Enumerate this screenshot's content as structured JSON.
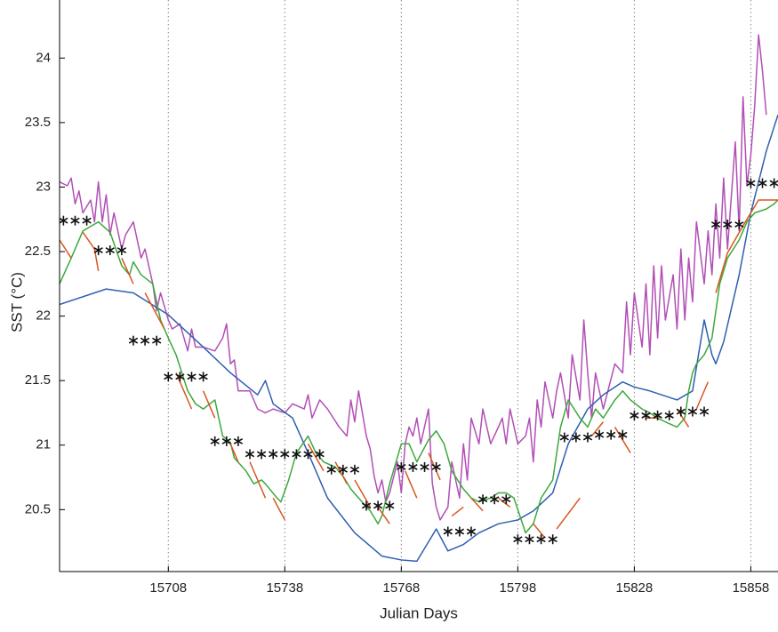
{
  "chart_data": {
    "type": "line",
    "xlabel": "Julian Days",
    "ylabel": "SST  (°C)",
    "xlim": [
      15680,
      15865
    ],
    "ylim": [
      20.02,
      24.45
    ],
    "xticks": [
      15708,
      15738,
      15768,
      15798,
      15828,
      15858
    ],
    "yticks": [
      20.5,
      21,
      21.5,
      22,
      22.5,
      23,
      23.5,
      24
    ],
    "grid": "x",
    "series": [
      {
        "color": "#b24fb6",
        "x": [
          15680,
          15682,
          15683,
          15684,
          15685,
          15686,
          15688,
          15689,
          15690,
          15691,
          15692,
          15693,
          15694,
          15696,
          15697,
          15699,
          15701,
          15702,
          15704,
          15705,
          15706,
          15708,
          15709,
          15711,
          15713,
          15714,
          15715,
          15717,
          15720,
          15722,
          15723,
          15724,
          15725,
          15726,
          15729,
          15731,
          15733,
          15735,
          15738,
          15740,
          15743,
          15744,
          15745,
          15747,
          15749,
          15752,
          15754,
          15755,
          15756,
          15757,
          15759,
          15760,
          15761,
          15762,
          15763,
          15764,
          15765,
          15767,
          15768,
          15769,
          15770,
          15771,
          15772,
          15773,
          15775,
          15776,
          15777,
          15778,
          15780,
          15781,
          15783,
          15784,
          15785,
          15786,
          15788,
          15789,
          15791,
          15793,
          15794,
          15795,
          15796,
          15798,
          15800,
          15801,
          15802,
          15803,
          15804,
          15805,
          15807,
          15808,
          15809,
          15811,
          15812,
          15814,
          15815,
          15816,
          15817,
          15818,
          15820,
          15823,
          15825,
          15826,
          15827,
          15828,
          15830,
          15831,
          15832,
          15833,
          15834,
          15835,
          15836,
          15838,
          15839,
          15840,
          15841,
          15842,
          15843,
          15844,
          15846,
          15847,
          15848,
          15849,
          15850,
          15851,
          15852,
          15854,
          15855,
          15856,
          15857,
          15858,
          15859,
          15860,
          15861,
          15862
        ],
        "values": [
          23.04,
          23.01,
          23.07,
          22.87,
          22.97,
          22.8,
          22.9,
          22.73,
          23.04,
          22.73,
          22.94,
          22.63,
          22.8,
          22.52,
          22.63,
          22.73,
          22.45,
          22.52,
          22.25,
          22.04,
          22.18,
          21.97,
          21.9,
          21.94,
          21.73,
          21.9,
          21.76,
          21.76,
          21.73,
          21.83,
          21.94,
          21.63,
          21.66,
          21.42,
          21.42,
          21.28,
          21.25,
          21.28,
          21.25,
          21.32,
          21.28,
          21.39,
          21.21,
          21.35,
          21.28,
          21.14,
          21.07,
          21.35,
          21.18,
          21.42,
          21.07,
          20.97,
          20.76,
          20.63,
          20.73,
          20.56,
          20.63,
          20.87,
          20.63,
          21.01,
          21.14,
          21.07,
          21.21,
          21.01,
          21.28,
          20.7,
          20.52,
          20.42,
          20.52,
          20.87,
          20.59,
          21.01,
          20.73,
          21.21,
          21.01,
          21.28,
          21.01,
          21.14,
          21.21,
          21.01,
          21.28,
          21.01,
          21.07,
          21.21,
          20.87,
          21.35,
          21.14,
          21.49,
          21.21,
          21.42,
          21.56,
          21.21,
          21.7,
          21.35,
          21.97,
          21.56,
          21.21,
          21.56,
          21.28,
          21.63,
          21.56,
          22.11,
          21.7,
          22.18,
          21.76,
          22.25,
          21.7,
          22.39,
          21.83,
          22.39,
          21.97,
          22.32,
          21.9,
          22.52,
          21.97,
          22.45,
          22.11,
          22.73,
          22.25,
          22.66,
          22.32,
          22.87,
          22.45,
          23.07,
          22.52,
          23.35,
          22.66,
          23.7,
          23.01,
          23.25,
          23.63,
          24.18,
          23.9,
          23.56
        ]
      },
      {
        "color": "#2f5faf",
        "x": [
          15680,
          15692,
          15699,
          15708,
          15717,
          15724,
          15731,
          15733,
          15735,
          15740,
          15744,
          15749,
          15756,
          15763,
          15768,
          15772,
          15775,
          15777,
          15780,
          15784,
          15788,
          15793,
          15798,
          15802,
          15807,
          15811,
          15816,
          15820,
          15825,
          15828,
          15832,
          15839,
          15843,
          15846,
          15848,
          15849,
          15851,
          15855,
          15858,
          15862,
          15865
        ],
        "values": [
          22.09,
          22.21,
          22.18,
          22.01,
          21.76,
          21.56,
          21.39,
          21.5,
          21.32,
          21.21,
          20.94,
          20.59,
          20.32,
          20.14,
          20.11,
          20.1,
          20.25,
          20.35,
          20.18,
          20.23,
          20.32,
          20.39,
          20.42,
          20.49,
          20.63,
          21.01,
          21.28,
          21.39,
          21.49,
          21.45,
          21.42,
          21.35,
          21.42,
          21.97,
          21.7,
          21.63,
          21.8,
          22.32,
          22.8,
          23.28,
          23.56
        ]
      },
      {
        "color": "#3da83d",
        "x": [
          15680,
          15683,
          15686,
          15690,
          15693,
          15696,
          15698,
          15699,
          15701,
          15704,
          15706,
          15708,
          15710,
          15713,
          15715,
          15717,
          15720,
          15722,
          15724,
          15725,
          15728,
          15730,
          15732,
          15733,
          15736,
          15737,
          15739,
          15741,
          15744,
          15746,
          15748,
          15751,
          15753,
          15755,
          15757,
          15760,
          15762,
          15763,
          15765,
          15768,
          15770,
          15772,
          15775,
          15777,
          15779,
          15781,
          15784,
          15786,
          15788,
          15791,
          15793,
          15795,
          15797,
          15800,
          15802,
          15804,
          15807,
          15809,
          15811,
          15814,
          15816,
          15818,
          15820,
          15823,
          15825,
          15827,
          15830,
          15832,
          15834,
          15836,
          15839,
          15841,
          15842,
          15843,
          15844,
          15846,
          15848,
          15850,
          15852,
          15855,
          15857,
          15859,
          15862,
          15864,
          15865
        ],
        "values": [
          22.25,
          22.45,
          22.66,
          22.73,
          22.65,
          22.39,
          22.32,
          22.42,
          22.32,
          22.25,
          21.97,
          21.83,
          21.7,
          21.42,
          21.32,
          21.28,
          21.35,
          21.07,
          21.02,
          20.9,
          20.8,
          20.7,
          20.73,
          20.7,
          20.59,
          20.56,
          20.73,
          20.94,
          21.07,
          20.94,
          20.87,
          20.83,
          20.76,
          20.66,
          20.59,
          20.49,
          20.39,
          20.45,
          20.7,
          21.01,
          21.01,
          20.87,
          21.04,
          21.11,
          21.01,
          20.8,
          20.66,
          20.59,
          20.56,
          20.59,
          20.63,
          20.63,
          20.59,
          20.32,
          20.39,
          20.59,
          20.73,
          21.14,
          21.35,
          21.21,
          21.14,
          21.28,
          21.21,
          21.35,
          21.42,
          21.35,
          21.28,
          21.25,
          21.21,
          21.18,
          21.14,
          21.21,
          21.42,
          21.56,
          21.63,
          21.7,
          21.83,
          22.25,
          22.45,
          22.59,
          22.73,
          22.8,
          22.83,
          22.87,
          22.9
        ]
      },
      {
        "color": "#d9561f",
        "x": [
          15680,
          15683,
          15685,
          15686,
          15689,
          15690,
          15693,
          15696,
          15699,
          15701,
          15702,
          15707,
          15708,
          15710,
          15714,
          15716,
          15717,
          15720,
          15722,
          15724,
          15726,
          15727,
          15729,
          15733,
          15734,
          15735,
          15738,
          15740,
          15744,
          15748,
          15750,
          15751,
          15754,
          15755,
          15756,
          15760,
          15761,
          15762,
          15765,
          15767,
          15769,
          15772,
          15774,
          15775,
          15778,
          15780,
          15781,
          15784,
          15785,
          15786,
          15789,
          15792,
          15793,
          15796,
          15797,
          15802,
          15805,
          15806,
          15808,
          15814,
          15816,
          15817,
          15820,
          15822,
          15823,
          15827,
          15829,
          15831,
          15834,
          15836,
          15839,
          15842,
          15843,
          15844,
          15847,
          15848,
          15849,
          15852,
          15856,
          15860,
          15865
        ],
        "values": [
          22.59,
          22.45,
          null,
          22.65,
          22.52,
          22.35,
          null,
          22.45,
          22.25,
          null,
          22.18,
          21.9,
          null,
          21.56,
          21.28,
          null,
          21.42,
          21.21,
          null,
          21.01,
          20.87,
          null,
          20.87,
          20.59,
          null,
          20.59,
          20.42,
          null,
          21.01,
          20.8,
          null,
          20.87,
          20.7,
          null,
          20.73,
          20.52,
          null,
          20.52,
          20.39,
          null,
          20.8,
          20.59,
          null,
          20.94,
          20.73,
          null,
          20.45,
          20.52,
          null,
          20.59,
          20.49,
          null,
          20.59,
          20.52,
          null,
          20.39,
          20.28,
          null,
          20.35,
          20.59,
          null,
          21.07,
          21.18,
          null,
          21.14,
          20.94,
          null,
          21.21,
          21.21,
          null,
          21.28,
          21.14,
          null,
          21.28,
          21.49,
          null,
          22.18,
          22.49,
          22.7,
          22.9,
          22.9
        ]
      },
      {
        "color": "#111111",
        "line": false,
        "marker": "asterisk",
        "x": [
          15681,
          15684,
          15687,
          15690,
          15693,
          15696,
          15699,
          15702,
          15705,
          15708,
          15711,
          15714,
          15717,
          15720,
          15723,
          15726,
          15729,
          15732,
          15735,
          15738,
          15741,
          15744,
          15747,
          15750,
          15753,
          15756,
          15759,
          15762,
          15765,
          15768,
          15771,
          15774,
          15777,
          15780,
          15783,
          15786,
          15789,
          15792,
          15795,
          15798,
          15801,
          15804,
          15807,
          15810,
          15813,
          15816,
          15819,
          15822,
          15825,
          15828,
          15831,
          15834,
          15837,
          15840,
          15843,
          15846,
          15849,
          15852,
          15855,
          15858,
          15861,
          15864
        ],
        "values": [
          22.74,
          22.74,
          22.74,
          22.51,
          22.51,
          22.51,
          21.81,
          21.81,
          21.81,
          21.53,
          21.53,
          21.53,
          21.53,
          21.03,
          21.03,
          21.03,
          20.93,
          20.93,
          20.93,
          20.93,
          20.93,
          20.93,
          20.93,
          20.81,
          20.81,
          20.81,
          20.53,
          20.53,
          20.53,
          20.83,
          20.83,
          20.83,
          20.83,
          20.33,
          20.33,
          20.33,
          20.58,
          20.58,
          20.58,
          20.27,
          20.27,
          20.27,
          20.27,
          21.06,
          21.06,
          21.06,
          21.08,
          21.08,
          21.08,
          21.23,
          21.23,
          21.23,
          21.23,
          21.26,
          21.26,
          21.26,
          22.71,
          22.71,
          22.71,
          23.03,
          23.03,
          23.03
        ]
      }
    ]
  }
}
